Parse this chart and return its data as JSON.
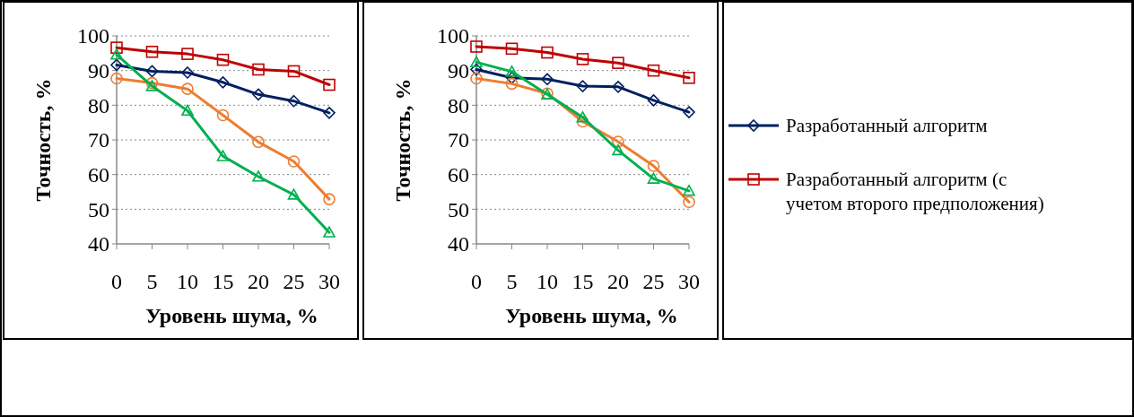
{
  "chart_data": [
    {
      "type": "line",
      "xlabel": "Уровень шума, %",
      "ylabel": "Точность, %",
      "x": [
        0,
        5,
        10,
        15,
        20,
        25,
        30
      ],
      "xlim": [
        0,
        30
      ],
      "xticks": [
        0,
        5,
        10,
        15,
        20,
        25,
        30
      ],
      "ylim": [
        40,
        100
      ],
      "yticks": [
        40,
        50,
        60,
        70,
        80,
        90,
        100
      ],
      "grid": "y",
      "series": [
        {
          "color": "#00b050",
          "marker": "triangle",
          "values": [
            94.6,
            85.5,
            78.4,
            65.3,
            59.4,
            54.2,
            43.3
          ]
        },
        {
          "color": "#ed7d31",
          "marker": "circle",
          "values": [
            87.7,
            86.4,
            84.7,
            77.1,
            69.4,
            63.8,
            52.9
          ]
        },
        {
          "color": "#002060",
          "marker": "diamond",
          "values": [
            91.6,
            89.8,
            89.4,
            86.6,
            83.1,
            81.2,
            77.8
          ]
        },
        {
          "color": "#c00000",
          "marker": "square",
          "values": [
            96.6,
            95.4,
            94.8,
            93.1,
            90.3,
            89.8,
            85.9
          ]
        }
      ]
    },
    {
      "type": "line",
      "xlabel": "Уровень шума, %",
      "ylabel": "Точность, %",
      "x": [
        0,
        5,
        10,
        15,
        20,
        25,
        30
      ],
      "xlim": [
        0,
        30
      ],
      "xticks": [
        0,
        5,
        10,
        15,
        20,
        25,
        30
      ],
      "ylim": [
        40,
        100
      ],
      "yticks": [
        40,
        50,
        60,
        70,
        80,
        90,
        100
      ],
      "grid": "y",
      "legend": "right",
      "series": [
        {
          "color": "#00b050",
          "marker": "triangle",
          "values": [
            92.4,
            89.7,
            83.1,
            76.5,
            67,
            58.8,
            55.3
          ]
        },
        {
          "color": "#ed7d31",
          "marker": "circle",
          "values": [
            87.7,
            86.2,
            83.4,
            75.3,
            69.5,
            62.5,
            52.1
          ]
        },
        {
          "name": "Разработанный алгоритм",
          "color": "#002060",
          "marker": "diamond",
          "values": [
            90.3,
            87.9,
            87.5,
            85.5,
            85.3,
            81.4,
            78
          ]
        },
        {
          "name": "Разработанный алгоритм (с учетом второго предположения)",
          "color": "#c00000",
          "marker": "square",
          "values": [
            96.9,
            96.3,
            95.2,
            93.3,
            92.2,
            90,
            87.9
          ]
        }
      ]
    }
  ]
}
